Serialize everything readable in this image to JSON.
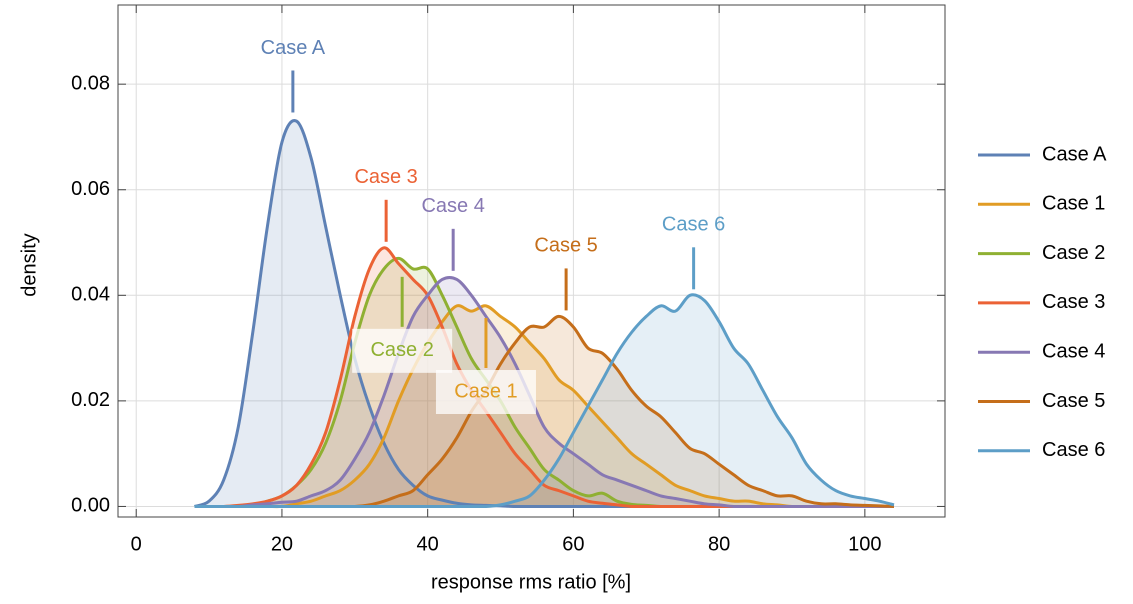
{
  "chart_data": {
    "type": "density",
    "xlabel": "response rms ratio [%]",
    "ylabel": "density",
    "xlim": [
      -2.5,
      111
    ],
    "ylim": [
      -0.002,
      0.095
    ],
    "xticks": [
      0,
      20,
      40,
      60,
      80,
      100
    ],
    "yticks": [
      {
        "value": 0,
        "label": "0.00"
      },
      0.02,
      0.04,
      0.06,
      0.08
    ],
    "grid": true,
    "legend": "right",
    "x": [
      8,
      10,
      12,
      14,
      16,
      18,
      20,
      22,
      24,
      26,
      28,
      30,
      32,
      34,
      36,
      38,
      40,
      42,
      44,
      46,
      48,
      50,
      52,
      54,
      56,
      58,
      60,
      62,
      64,
      66,
      68,
      70,
      72,
      74,
      76,
      78,
      80,
      82,
      84,
      86,
      88,
      90,
      92,
      94,
      96,
      98,
      100,
      102,
      104
    ],
    "series": [
      {
        "name": "Case A",
        "color": "#5e81b5",
        "values": [
          0,
          0.001,
          0.005,
          0.015,
          0.033,
          0.053,
          0.069,
          0.073,
          0.066,
          0.053,
          0.04,
          0.028,
          0.019,
          0.012,
          0.007,
          0.004,
          0.002,
          0.0012,
          0.0006,
          0.0003,
          0.0002,
          0.0001,
          0,
          0,
          0,
          0,
          0,
          0,
          0,
          0,
          0,
          0,
          0,
          0,
          0,
          0,
          0,
          0,
          0,
          0,
          0,
          0,
          0,
          0,
          0,
          0,
          0,
          0,
          0
        ]
      },
      {
        "name": "Case 1",
        "color": "#e19c24",
        "values": [
          0,
          0,
          0,
          0,
          0,
          0,
          0,
          0.0005,
          0.001,
          0.002,
          0.003,
          0.005,
          0.008,
          0.013,
          0.02,
          0.026,
          0.031,
          0.035,
          0.038,
          0.037,
          0.038,
          0.036,
          0.034,
          0.031,
          0.028,
          0.024,
          0.022,
          0.019,
          0.016,
          0.013,
          0.01,
          0.008,
          0.006,
          0.004,
          0.003,
          0.002,
          0.0015,
          0.001,
          0.001,
          0.0005,
          0.0003,
          0,
          0,
          0,
          0,
          0,
          0,
          0,
          0
        ]
      },
      {
        "name": "Case 2",
        "color": "#8fb032",
        "values": [
          0,
          0,
          0,
          0,
          0.0003,
          0.001,
          0.002,
          0.004,
          0.007,
          0.012,
          0.02,
          0.031,
          0.04,
          0.045,
          0.047,
          0.045,
          0.045,
          0.04,
          0.034,
          0.028,
          0.024,
          0.02,
          0.015,
          0.011,
          0.007,
          0.005,
          0.003,
          0.002,
          0.0025,
          0.001,
          0.0004,
          0.0002,
          0,
          0,
          0,
          0,
          0,
          0,
          0,
          0,
          0,
          0,
          0,
          0,
          0,
          0,
          0,
          0,
          0
        ]
      },
      {
        "name": "Case 3",
        "color": "#eb6235",
        "values": [
          0,
          0,
          0,
          0.0002,
          0.0005,
          0.001,
          0.002,
          0.004,
          0.008,
          0.014,
          0.024,
          0.036,
          0.045,
          0.049,
          0.046,
          0.043,
          0.04,
          0.034,
          0.027,
          0.022,
          0.018,
          0.014,
          0.01,
          0.007,
          0.004,
          0.003,
          0.002,
          0.001,
          0.0006,
          0.0003,
          0,
          0,
          0,
          0,
          0,
          0,
          0,
          0,
          0,
          0,
          0,
          0,
          0,
          0,
          0,
          0,
          0,
          0,
          0
        ]
      },
      {
        "name": "Case 4",
        "color": "#8778b3",
        "values": [
          0,
          0,
          0,
          0,
          0.0003,
          0.0005,
          0.0008,
          0.001,
          0.002,
          0.003,
          0.005,
          0.009,
          0.014,
          0.021,
          0.029,
          0.036,
          0.04,
          0.043,
          0.043,
          0.04,
          0.036,
          0.032,
          0.027,
          0.021,
          0.015,
          0.012,
          0.01,
          0.008,
          0.006,
          0.005,
          0.004,
          0.003,
          0.002,
          0.0015,
          0.001,
          0.0005,
          0.0003,
          0,
          0,
          0,
          0,
          0,
          0,
          0,
          0,
          0,
          0,
          0,
          0
        ]
      },
      {
        "name": "Case 5",
        "color": "#c56e1a",
        "values": [
          0,
          0,
          0,
          0,
          0,
          0,
          0,
          0,
          0,
          0,
          0,
          0,
          0.0003,
          0.001,
          0.002,
          0.003,
          0.006,
          0.009,
          0.013,
          0.018,
          0.022,
          0.027,
          0.031,
          0.034,
          0.034,
          0.036,
          0.034,
          0.03,
          0.029,
          0.026,
          0.022,
          0.019,
          0.017,
          0.014,
          0.011,
          0.01,
          0.008,
          0.006,
          0.004,
          0.003,
          0.002,
          0.002,
          0.001,
          0.0005,
          0.0005,
          0.0003,
          0.0002,
          0.0001,
          0
        ]
      },
      {
        "name": "Case 6",
        "color": "#5d9ec7",
        "values": [
          0,
          0,
          0,
          0,
          0,
          0,
          0,
          0,
          0,
          0,
          0,
          0,
          0,
          0,
          0,
          0,
          0,
          0,
          0,
          0,
          0,
          0.0003,
          0.001,
          0.002,
          0.005,
          0.009,
          0.014,
          0.019,
          0.024,
          0.029,
          0.033,
          0.036,
          0.038,
          0.037,
          0.04,
          0.039,
          0.035,
          0.03,
          0.027,
          0.022,
          0.017,
          0.013,
          0.008,
          0.005,
          0.003,
          0.002,
          0.0015,
          0.001,
          0.0003
        ]
      }
    ],
    "annotations": [
      {
        "text": "Case A",
        "x": 21.5,
        "y": 0.0735
      },
      {
        "text": "Case 3",
        "x": 34.3,
        "y": 0.049
      },
      {
        "text": "Case 4",
        "x": 43.5,
        "y": 0.0435
      },
      {
        "text": "Case 5",
        "x": 59,
        "y": 0.036
      },
      {
        "text": "Case 6",
        "x": 76.5,
        "y": 0.04
      },
      {
        "text": "Case 2",
        "x": 36.5,
        "y": 0.0435
      },
      {
        "text": "Case 1",
        "x": 48,
        "y": 0.0357
      }
    ]
  }
}
